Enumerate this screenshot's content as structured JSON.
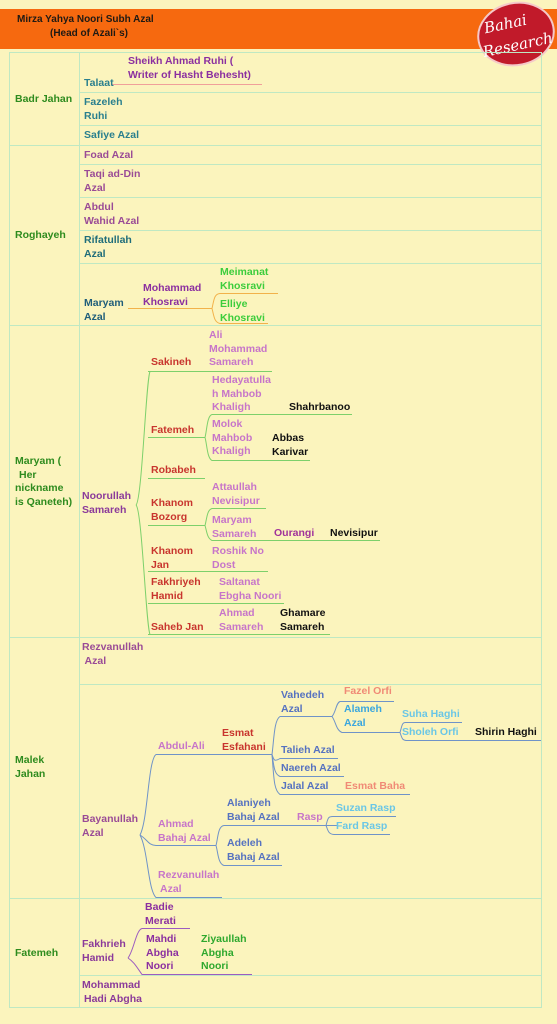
{
  "header": {
    "title": "Mirza Yahya Noori Subh Azal",
    "subtitle": "(Head of Azali`s)",
    "logo_line1": "Bahai",
    "logo_line2": "Research"
  },
  "sections": {
    "badr": "Badr Jahan",
    "roghayeh": "Roghayeh",
    "maryam": [
      "Maryam  (",
      "Her",
      "nickname",
      "is Qaneteh)"
    ],
    "malek": [
      "Malek",
      "Jahan"
    ],
    "fatemeh": "Fatemeh"
  },
  "people": {
    "talaat": "Talaat",
    "sheikh": [
      "Sheikh Ahmad Ruhi (",
      "Writer of Hasht Behesht)"
    ],
    "fazeleh": [
      "Fazeleh",
      "Ruhi"
    ],
    "safiye": "Safiye Azal",
    "foad": "Foad Azal",
    "taqi": [
      "Taqi ad-Din",
      "Azal"
    ],
    "abdulwahid": [
      "Abdul",
      "Wahid Azal"
    ],
    "rifatullah": [
      "Rifatullah",
      "Azal"
    ],
    "maryamazal": [
      "Maryam",
      "Azal"
    ],
    "mohammadkh": [
      "Mohammad",
      "Khosravi"
    ],
    "meimanat": [
      "Meimanat",
      "Khosravi"
    ],
    "elliye": [
      "Elliye",
      "Khosravi"
    ],
    "noorullah": [
      "Noorullah",
      "Samareh"
    ],
    "sakineh": "Sakineh",
    "alimohammad": [
      "Ali",
      "Mohammad",
      "Samareh"
    ],
    "fatemeh2": "Fatemeh",
    "hedayat": [
      "Hedayatulla",
      "h Mahbob",
      "Khaligh"
    ],
    "shahrbanoo": "Shahrbanoo",
    "molok": [
      "Molok",
      "Mahbob",
      "Khaligh"
    ],
    "abbas": [
      "Abbas",
      "Karivar"
    ],
    "robabeh": "Robabeh",
    "khanombozorg": [
      "Khanom",
      "Bozorg"
    ],
    "attaullah": [
      "Attaullah",
      "Nevisipur"
    ],
    "maryamsam": [
      "Maryam",
      "Samareh"
    ],
    "ourangi": "Ourangi",
    "nevisipur": "Nevisipur",
    "khanomjan": [
      "Khanom",
      "Jan"
    ],
    "roshik": [
      "Roshik No",
      "Dost"
    ],
    "fakhriyeh": [
      "Fakhriyeh",
      "Hamid"
    ],
    "saltanat": [
      "Saltanat",
      "Ebgha Noori"
    ],
    "sahebjan": "Saheb Jan",
    "ahmadsam": [
      "Ahmad",
      "Samareh"
    ],
    "ghamare": [
      "Ghamare",
      "Samareh"
    ],
    "rezvanullah1": [
      "Rezvanullah",
      " Azal"
    ],
    "bayanullah": [
      "Bayanullah",
      "Azal"
    ],
    "abdulali": "Abdul-Ali",
    "esmat": [
      "Esmat",
      "Esfahani"
    ],
    "vahedeh": [
      "Vahedeh",
      "Azal"
    ],
    "fazel": "Fazel Orfi",
    "alameh": [
      "Alameh",
      "Azal"
    ],
    "suha": "Suha Haghi",
    "sholeh": "Sholeh Orfi",
    "shirin": "Shirin Haghi",
    "talieh": "Talieh Azal",
    "naereh": "Naereh Azal",
    "jalal": "Jalal Azal",
    "esmatbaha": "Esmat Baha",
    "ahmadbahaj": [
      "Ahmad",
      "Bahaj Azal"
    ],
    "alaniyeh": [
      "Alaniyeh",
      "Bahaj Azal"
    ],
    "rasp": "Rasp",
    "suzan": "Suzan Rasp",
    "fard": "Fard Rasp",
    "adeleh": [
      "Adeleh",
      "Bahaj Azal"
    ],
    "rezvanullah2": [
      "Rezvanullah",
      "Azal"
    ],
    "fakhrieh": [
      "Fakhrieh",
      "Hamid"
    ],
    "badie": [
      "Badie",
      "Merati"
    ],
    "mahdi": [
      "Mahdi",
      "Abgha",
      "Noori"
    ],
    "ziyaullah": [
      "Ziyaullah",
      "Abgha",
      "Noori"
    ],
    "mohammadhadi": [
      "Mohammad",
      "Hadi Abgha"
    ]
  }
}
